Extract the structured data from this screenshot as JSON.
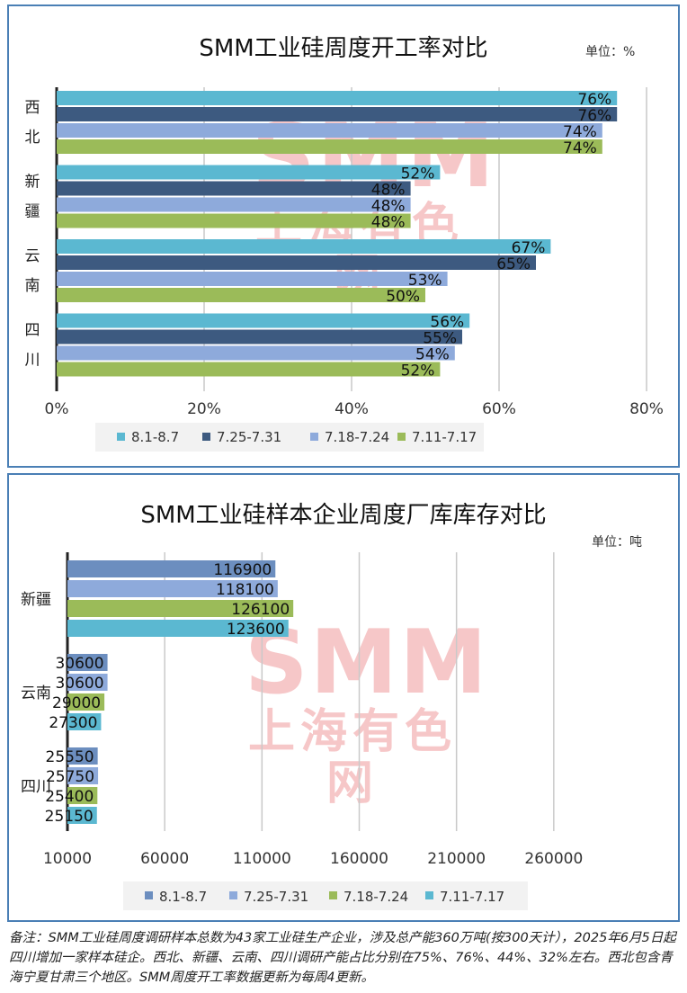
{
  "colors": {
    "series1": "#5bb8d1",
    "series2": "#3d5a80",
    "series3": "#8eaadb",
    "series4": "#9bbb59",
    "border": "#4a7fb5",
    "watermark": "#e0393e"
  },
  "watermark": {
    "line1": "SMM",
    "line2": "上海有色网"
  },
  "chart_data": [
    {
      "type": "bar",
      "orientation": "horizontal",
      "title": "SMM工业硅周度开工率对比",
      "unit_label": "单位：%",
      "categories": [
        "西北",
        "新疆",
        "云南",
        "四川"
      ],
      "category_display": [
        [
          "西",
          "北"
        ],
        [
          "新",
          "疆"
        ],
        [
          "云",
          "南"
        ],
        [
          "四",
          "川"
        ]
      ],
      "series": [
        {
          "name": "8.1-8.7",
          "values": [
            76,
            52,
            67,
            56
          ]
        },
        {
          "name": "7.25-7.31",
          "values": [
            76,
            48,
            65,
            55
          ]
        },
        {
          "name": "7.18-7.24",
          "values": [
            74,
            48,
            53,
            54
          ]
        },
        {
          "name": "7.11-7.17",
          "values": [
            74,
            48,
            50,
            52
          ]
        }
      ],
      "xlim": [
        0,
        80
      ],
      "xticks": [
        "0%",
        "20%",
        "40%",
        "60%",
        "80%"
      ],
      "value_suffix": "%",
      "grid": true,
      "legend_position": "bottom"
    },
    {
      "type": "bar",
      "orientation": "horizontal",
      "title": "SMM工业硅样本企业周度厂库库存对比",
      "unit_label": "单位：吨",
      "categories": [
        "新疆",
        "云南",
        "四川"
      ],
      "series": [
        {
          "name": "8.1-8.7",
          "values": [
            116900,
            30600,
            25550
          ]
        },
        {
          "name": "7.25-7.31",
          "values": [
            118100,
            30600,
            25750
          ]
        },
        {
          "name": "7.18-7.24",
          "values": [
            126100,
            29000,
            25400
          ]
        },
        {
          "name": "7.11-7.17",
          "values": [
            123600,
            27300,
            25150
          ]
        }
      ],
      "series_colors": [
        "#6c8ebf",
        "#8eaadb",
        "#9bbb59",
        "#5bb8d1"
      ],
      "xlim": [
        10000,
        310000
      ],
      "xticks": [
        "10000",
        "60000",
        "110000",
        "160000",
        "210000",
        "260000"
      ],
      "grid": true,
      "legend_position": "bottom"
    }
  ],
  "footnote": "备注：SMM工业硅周度调研样本总数为43家工业硅生产企业，涉及总产能360万吨(按300天计），2025年6月5日起四川增加一家样本硅企。西北、新疆、云南、四川调研产能占比分别在75%、76%、44%、32%左右。西北包含青海宁夏甘肃三个地区。SMM周度开工率数据更新为每周4更新。"
}
